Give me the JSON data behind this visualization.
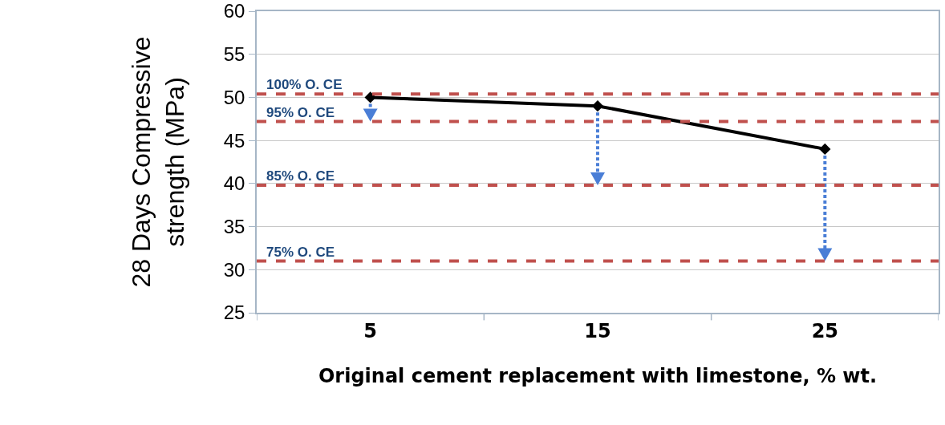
{
  "chart_data": {
    "type": "line",
    "xlabel": "Original cement replacement with limestone, % wt.",
    "ylabel": "28 Days Compressive\nstrength (MPa)",
    "categories": [
      "5",
      "15",
      "25"
    ],
    "series": [
      {
        "color": "#000000",
        "values": [
          50,
          49,
          44
        ]
      }
    ],
    "ylim": [
      25,
      60
    ],
    "yticks": [
      25,
      30,
      35,
      40,
      45,
      50,
      55,
      60
    ],
    "grid": "y",
    "marker": "diamond",
    "line_style": "solid",
    "ref_lines": [
      {
        "axis": "y",
        "value": 50.4,
        "label": "100% O. CE",
        "color": "#c0504d",
        "line_style": "dashed"
      },
      {
        "axis": "y",
        "value": 47.2,
        "label": "95% O. CE",
        "color": "#c0504d",
        "line_style": "dashed"
      },
      {
        "axis": "y",
        "value": 39.8,
        "label": "85% O. CE",
        "color": "#c0504d",
        "line_style": "dashed"
      },
      {
        "axis": "y",
        "value": 31,
        "label": "75% O. CE",
        "color": "#c0504d",
        "line_style": "dashed"
      }
    ]
  }
}
